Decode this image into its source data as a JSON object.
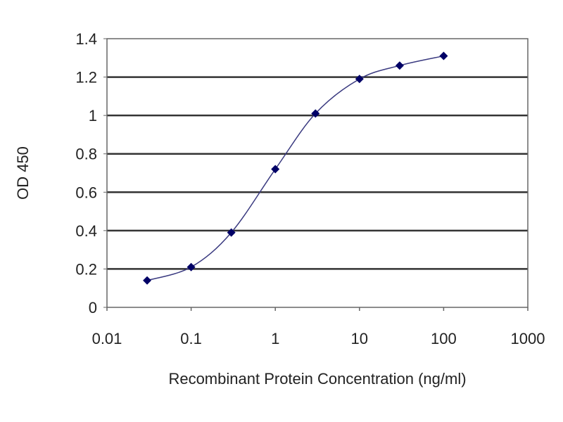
{
  "chart_data": {
    "type": "line",
    "title": "",
    "xlabel": "Recombinant Protein Concentration (ng/ml)",
    "ylabel": "OD 450",
    "xscale": "log",
    "xlim": [
      0.01,
      1000
    ],
    "ylim": [
      0,
      1.4
    ],
    "xticks": [
      "0.01",
      "0.1",
      "1",
      "10",
      "100",
      "1000"
    ],
    "yticks": [
      "0",
      "0.2",
      "0.4",
      "0.6",
      "0.8",
      "1",
      "1.2",
      "1.4"
    ],
    "grid": "horizontal",
    "legend": "none",
    "smooth": true,
    "marker": "diamond",
    "series": [
      {
        "color": "#000066",
        "x": [
          0.03,
          0.1,
          0.3,
          1,
          3,
          10,
          30,
          100
        ],
        "y": [
          0.14,
          0.21,
          0.39,
          0.72,
          1.01,
          1.19,
          1.26,
          1.31
        ]
      }
    ]
  }
}
